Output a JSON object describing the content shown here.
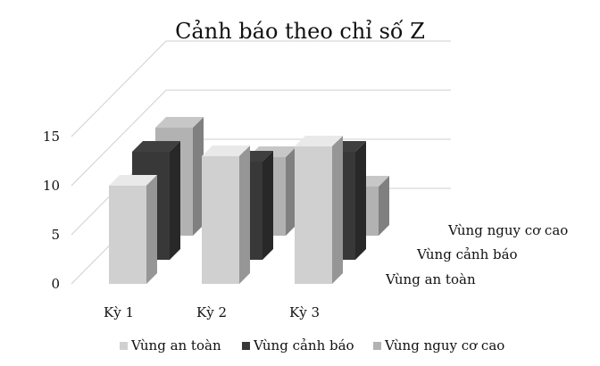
{
  "chart_data": {
    "type": "bar",
    "title": "Cảnh báo theo chỉ số Z",
    "categories": [
      "Kỳ 1",
      "Kỳ 2",
      "Kỳ 3"
    ],
    "series": [
      {
        "name": "Vùng an toàn",
        "values": [
          10,
          13,
          14
        ],
        "color": "#d0d0d0"
      },
      {
        "name": "Vùng cảnh báo",
        "values": [
          11,
          10,
          11
        ],
        "color": "#383838"
      },
      {
        "name": "Vùng nguy cơ cao",
        "values": [
          11,
          8,
          5
        ],
        "color": "#b2b2b2"
      }
    ],
    "yticks": [
      "0",
      "5",
      "10",
      "15"
    ],
    "ylim": [
      0,
      15
    ],
    "grid": true,
    "legend_position": "bottom",
    "three_d": true
  }
}
